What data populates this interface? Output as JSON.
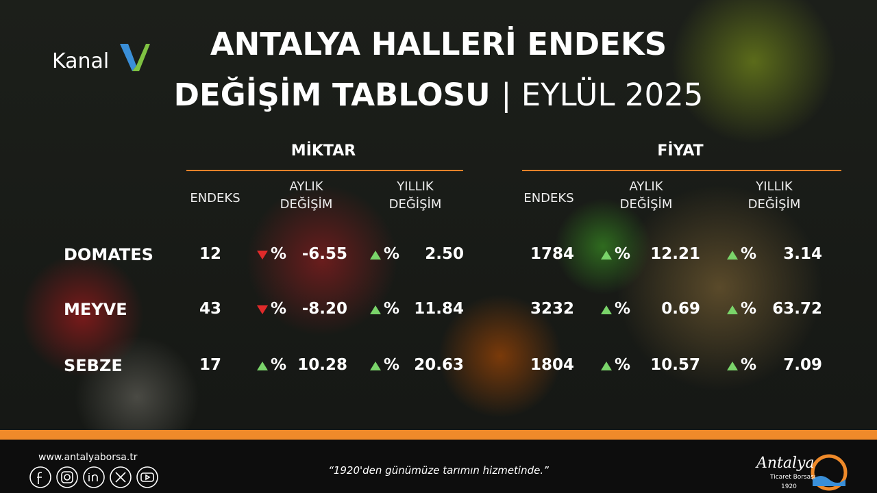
{
  "logo": {
    "text": "Kanal"
  },
  "header": {
    "title_line1": "ANTALYA HALLERİ ENDEKS",
    "title_line2": "DEĞİŞİM TABLOSU",
    "period": "| EYLÜL 2025"
  },
  "table": {
    "groups": [
      "MİKTAR",
      "FİYAT"
    ],
    "column_headers": [
      {
        "endeks": "ENDEKS",
        "aylik": [
          "AYLIK",
          "DEĞİŞİM"
        ],
        "yillik": [
          "YILLIK",
          "DEĞİŞİM"
        ]
      },
      {
        "endeks": "ENDEKS",
        "aylik": [
          "AYLIK",
          "DEĞİŞİM"
        ],
        "yillik": [
          "YILLIK",
          "DEĞİŞİM"
        ]
      }
    ],
    "percent_sign": "%",
    "rows": [
      {
        "name": "DOMATES",
        "miktar": {
          "endeks": "12",
          "aylik": "-6.55",
          "yillik": "2.50"
        },
        "fiyat": {
          "endeks": "1784",
          "aylik": "12.21",
          "yillik": "3.14"
        }
      },
      {
        "name": "MEYVE",
        "miktar": {
          "endeks": "43",
          "aylik": "-8.20",
          "yillik": "11.84"
        },
        "fiyat": {
          "endeks": "3232",
          "aylik": "0.69",
          "yillik": "63.72"
        }
      },
      {
        "name": "SEBZE",
        "miktar": {
          "endeks": "17",
          "aylik": "10.28",
          "yillik": "20.63"
        },
        "fiyat": {
          "endeks": "1804",
          "aylik": "10.57",
          "yillik": "7.09"
        }
      }
    ]
  },
  "footer": {
    "website": "www.antalyaborsa.tr",
    "slogan": "“1920'den günümüze tarımın hizmetinde.”",
    "brand": {
      "name": "Antalya",
      "sub": "Ticaret Borsası",
      "year": "1920"
    }
  }
}
